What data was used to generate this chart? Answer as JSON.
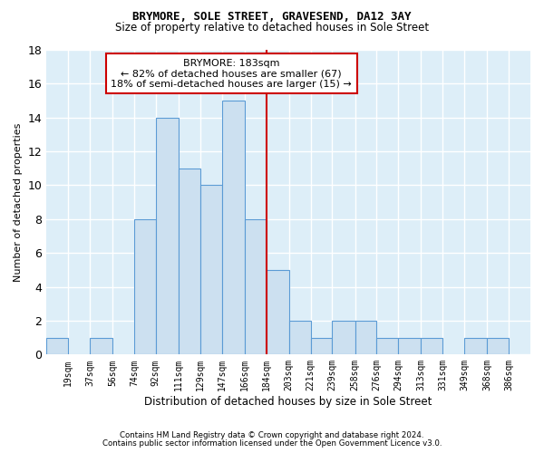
{
  "title": "BRYMORE, SOLE STREET, GRAVESEND, DA12 3AY",
  "subtitle": "Size of property relative to detached houses in Sole Street",
  "xlabel": "Distribution of detached houses by size in Sole Street",
  "ylabel": "Number of detached properties",
  "footnote1": "Contains HM Land Registry data © Crown copyright and database right 2024.",
  "footnote2": "Contains public sector information licensed under the Open Government Licence v3.0.",
  "annotation_title": "BRYMORE: 183sqm",
  "annotation_line1": "← 82% of detached houses are smaller (67)",
  "annotation_line2": "18% of semi-detached houses are larger (15) →",
  "bin_edges": [
    1,
    19,
    37,
    56,
    74,
    92,
    111,
    129,
    147,
    166,
    184,
    203,
    221,
    239,
    258,
    276,
    294,
    313,
    331,
    349,
    368,
    386
  ],
  "bar_heights": [
    1,
    0,
    1,
    0,
    8,
    14,
    11,
    10,
    15,
    8,
    5,
    2,
    1,
    2,
    2,
    1,
    1,
    1,
    0,
    1,
    1
  ],
  "tick_positions": [
    19,
    37,
    56,
    74,
    92,
    111,
    129,
    147,
    166,
    184,
    203,
    221,
    239,
    258,
    276,
    294,
    313,
    331,
    349,
    368,
    386
  ],
  "tick_labels": [
    "19sqm",
    "37sqm",
    "56sqm",
    "74sqm",
    "92sqm",
    "111sqm",
    "129sqm",
    "147sqm",
    "166sqm",
    "184sqm",
    "203sqm",
    "221sqm",
    "239sqm",
    "258sqm",
    "276sqm",
    "294sqm",
    "313sqm",
    "331sqm",
    "349sqm",
    "368sqm",
    "386sqm"
  ],
  "property_line_x": 184,
  "bar_color": "#cce0f0",
  "bar_edge_color": "#5b9bd5",
  "line_color": "#cc0000",
  "background_color": "#ddeef8",
  "grid_color": "#ffffff",
  "xlim": [
    1,
    404
  ],
  "ylim": [
    0,
    18
  ],
  "yticks": [
    0,
    2,
    4,
    6,
    8,
    10,
    12,
    14,
    16,
    18
  ],
  "title_fontsize": 9,
  "subtitle_fontsize": 8.5,
  "ylabel_fontsize": 8,
  "xlabel_fontsize": 8.5,
  "ytick_fontsize": 9,
  "xtick_fontsize": 7
}
